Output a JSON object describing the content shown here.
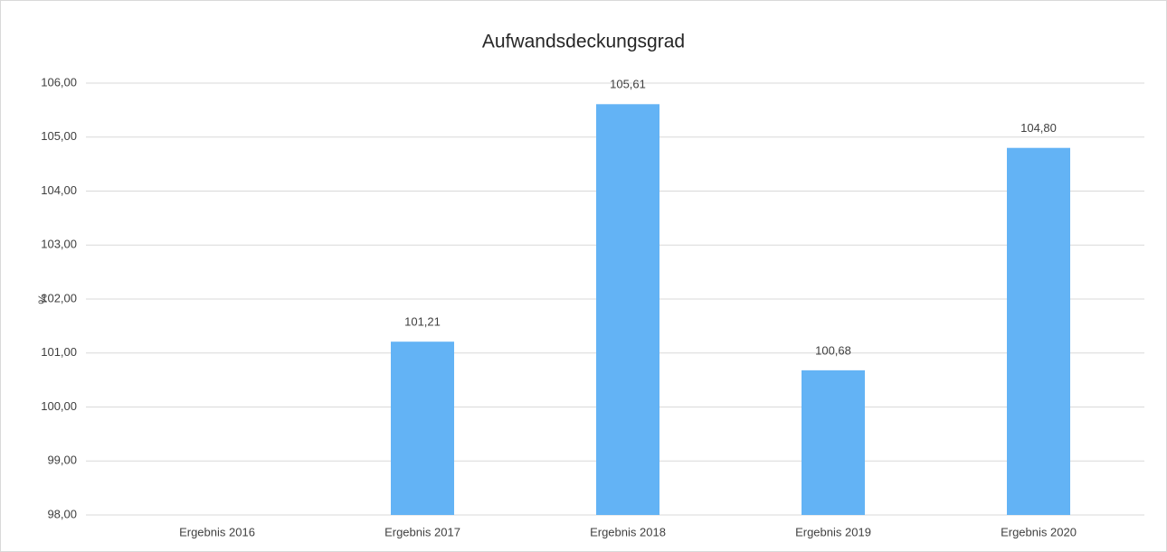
{
  "chart_data": {
    "type": "bar",
    "title": "Aufwandsdeckungsgrad",
    "y_label": "%",
    "categories": [
      "Ergebnis 2016",
      "Ergebnis 2017",
      "Ergebnis 2018",
      "Ergebnis 2019",
      "Ergebnis 2020"
    ],
    "values": [
      null,
      101.21,
      105.61,
      100.68,
      104.8
    ],
    "value_labels": [
      null,
      "101,21",
      "105,61",
      "100,68",
      "104,80"
    ],
    "color": "#63b3f5",
    "ylim": [
      98,
      106
    ],
    "yticks": [
      {
        "value": 98,
        "label": "98,00"
      },
      {
        "value": 99,
        "label": "99,00"
      },
      {
        "value": 100,
        "label": "100,00"
      },
      {
        "value": 101,
        "label": "101,00"
      },
      {
        "value": 102,
        "label": "102,00"
      },
      {
        "value": 103,
        "label": "103,00"
      },
      {
        "value": 104,
        "label": "104,00"
      },
      {
        "value": 105,
        "label": "105,00"
      },
      {
        "value": 106,
        "label": "106,00"
      }
    ],
    "grid": true
  }
}
